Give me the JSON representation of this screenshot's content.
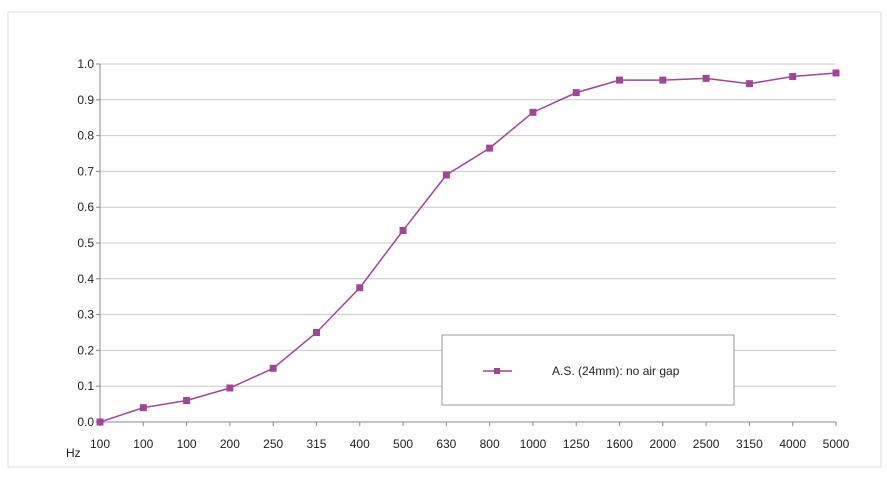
{
  "chart_data": {
    "type": "line",
    "x_unit": "Hz",
    "categories": [
      "100",
      "100",
      "100",
      "200",
      "250",
      "315",
      "400",
      "500",
      "630",
      "800",
      "1000",
      "1250",
      "1600",
      "2000",
      "2500",
      "3150",
      "4000",
      "5000"
    ],
    "series": [
      {
        "name": "A.S. (24mm): no air gap",
        "values": [
          0.0,
          0.04,
          0.06,
          0.095,
          0.15,
          0.25,
          0.375,
          0.535,
          0.69,
          0.765,
          0.865,
          0.92,
          0.955,
          0.955,
          0.96,
          0.945,
          0.965,
          0.975
        ],
        "color": "#a3449b",
        "marker": "square"
      }
    ],
    "y_ticks": [
      "0.0",
      "0.1",
      "0.2",
      "0.3",
      "0.4",
      "0.5",
      "0.6",
      "0.7",
      "0.8",
      "0.9",
      "1.0"
    ],
    "ylim": [
      0,
      1.0
    ],
    "grid": "horizontal",
    "legend_placement": "bottom-right inside plot"
  }
}
